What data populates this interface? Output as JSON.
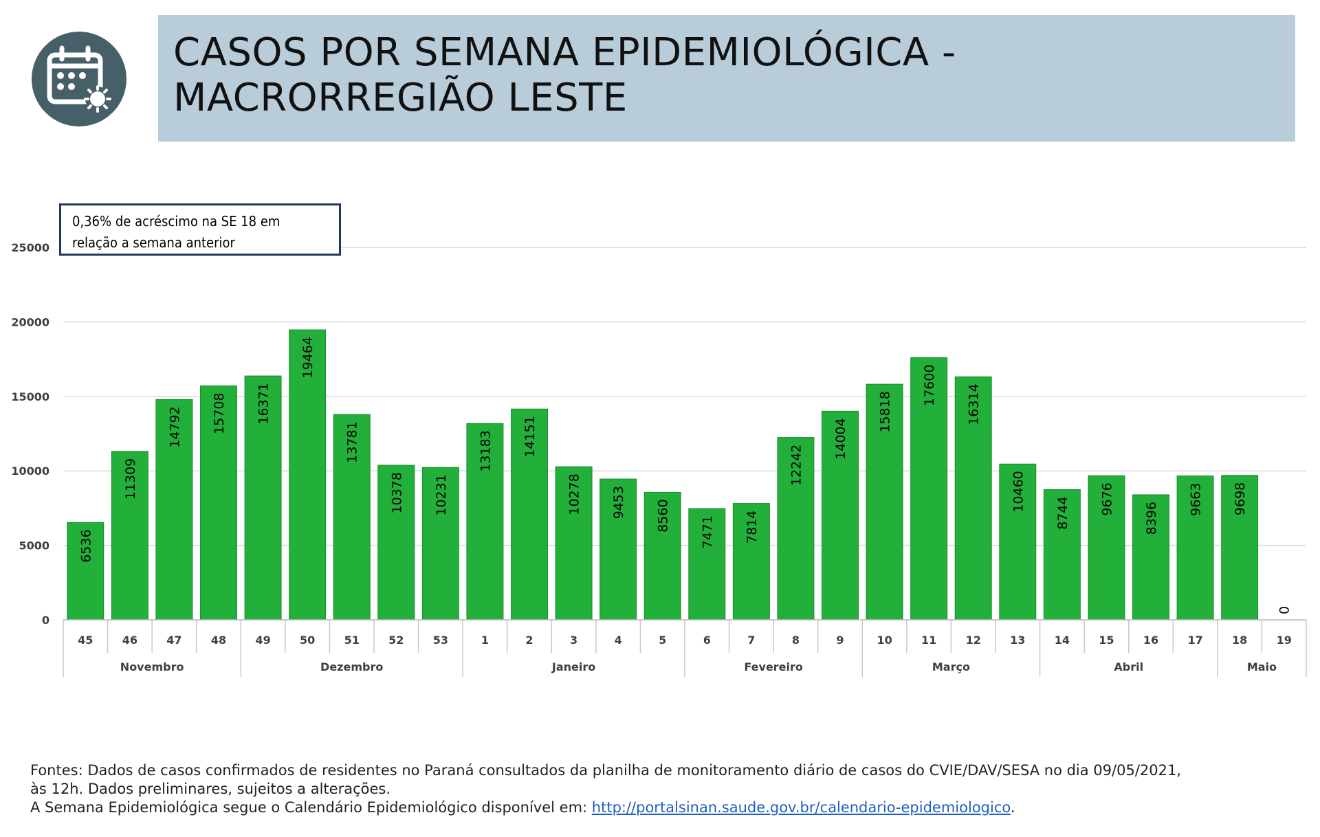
{
  "header": {
    "title_line1": "CASOS POR SEMANA EPIDEMIOLÓGICA -",
    "title_line2": "MACRORREGIÃO LESTE",
    "icon": "calendar-virus-icon",
    "icon_bg": "#475f68",
    "title_bg": "#b8cdd9"
  },
  "callout": {
    "line1": "0,36% de acréscimo na SE 18 em",
    "line2": "relação a semana anterior"
  },
  "chart_data": {
    "type": "bar",
    "title": "",
    "xlabel": "",
    "ylabel": "",
    "ylim": [
      0,
      25000
    ],
    "yticks": [
      0,
      5000,
      10000,
      15000,
      20000,
      25000
    ],
    "grid": true,
    "legend": "none",
    "bar_color": "#22b03a",
    "categories": [
      "45",
      "46",
      "47",
      "48",
      "49",
      "50",
      "51",
      "52",
      "53",
      "1",
      "2",
      "3",
      "4",
      "5",
      "6",
      "7",
      "8",
      "9",
      "10",
      "11",
      "12",
      "13",
      "14",
      "15",
      "16",
      "17",
      "18",
      "19"
    ],
    "values": [
      6536,
      11309,
      14792,
      15708,
      16371,
      19464,
      13781,
      10378,
      10231,
      13183,
      14151,
      10278,
      9453,
      8560,
      7471,
      7814,
      12242,
      14004,
      15818,
      17600,
      16314,
      10460,
      8744,
      9676,
      8396,
      9663,
      9698,
      0
    ],
    "months": [
      {
        "label": "Novembro",
        "count": 4
      },
      {
        "label": "Dezembro",
        "count": 5
      },
      {
        "label": "Janeiro",
        "count": 5
      },
      {
        "label": "Fevereiro",
        "count": 4
      },
      {
        "label": "Março",
        "count": 4
      },
      {
        "label": "Abril",
        "count": 4
      },
      {
        "label": "Maio",
        "count": 2
      }
    ]
  },
  "footer": {
    "line1": "Fontes: Dados de casos confirmados de residentes no Paraná consultados da planilha de monitoramento diário de casos do CVIE/DAV/SESA no dia 09/05/2021,",
    "line2": "às 12h. Dados preliminares, sujeitos a alterações.",
    "line3_prefix": "A Semana Epidemiológica segue o Calendário Epidemiológico disponível em: ",
    "link": "http://portalsinan.saude.gov.br/calendario-epidemiologico",
    "line3_suffix": "."
  }
}
